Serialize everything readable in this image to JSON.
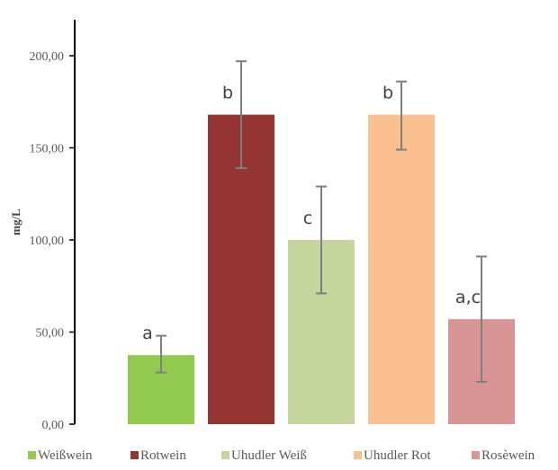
{
  "chart_data": {
    "type": "bar",
    "categories": [
      "Weißwein",
      "Rotwein",
      "Uhudler Weiß",
      "Uhudler Rot",
      "Rosèwein"
    ],
    "values": [
      37.5,
      168,
      100,
      168,
      57
    ],
    "error_low": [
      28,
      139,
      71,
      149,
      23
    ],
    "error_high": [
      48,
      197,
      129,
      186,
      91
    ],
    "significance_labels": [
      "a",
      "b",
      "c",
      "b",
      "a,c"
    ],
    "colors": [
      "#92c94f",
      "#943533",
      "#c4d69b",
      "#fac090",
      "#d99594"
    ],
    "ylabel": "mg/L",
    "ylim": [
      0,
      200
    ],
    "yticks": [
      0,
      50,
      100,
      150,
      200
    ],
    "ytick_labels": [
      "0,00",
      "50,00",
      "100,00",
      "150,00",
      "200,00"
    ],
    "legend": "bottom",
    "grid": false
  }
}
